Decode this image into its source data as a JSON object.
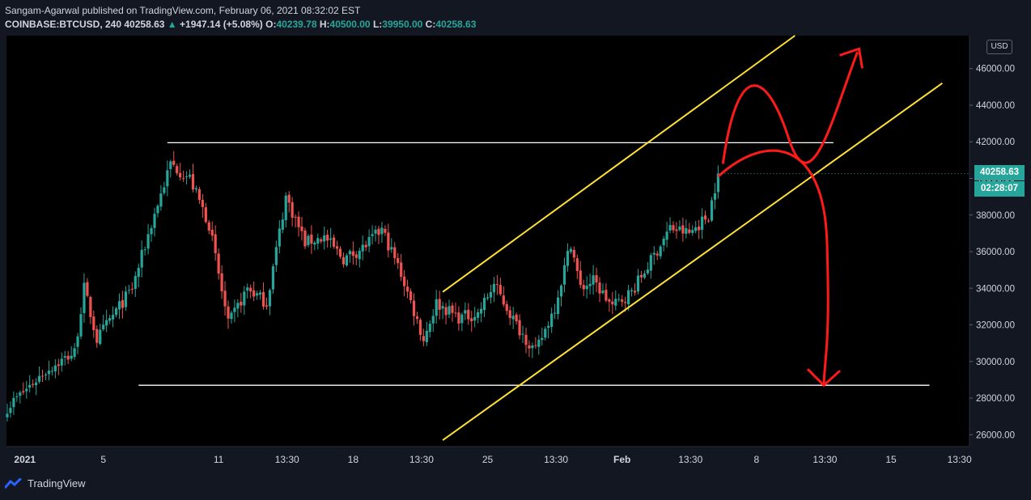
{
  "header": {
    "publisher_line": "Sangam-Agarwal published on TradingView.com, February 06, 2021 08:32:02 EST",
    "symbol": "COINBASE:BTCUSD, 240",
    "last": "40258.63",
    "change": "+1947.14 (+5.08%)",
    "open_label": "O:",
    "open": "40239.78",
    "high_label": "H:",
    "high": "40500.00",
    "low_label": "L:",
    "low": "39950.00",
    "close_label": "C:",
    "close": "40258.63"
  },
  "price_axis": {
    "currency": "USD",
    "current_price": "40258.63",
    "countdown": "02:28:07"
  },
  "footer": {
    "brand": "TradingView"
  },
  "colors": {
    "background": "#000000",
    "up": "#26a69a",
    "down": "#ef5350",
    "channel": "#ffe135",
    "level": "#ffffff",
    "arrow": "#ff1a1a"
  },
  "chart_data": {
    "type": "candlestick",
    "interval": "240",
    "symbol": "COINBASE:BTCUSD",
    "y_axis": {
      "ticks": [
        26000,
        28000,
        30000,
        32000,
        34000,
        36000,
        38000,
        40000,
        42000,
        44000,
        46000
      ],
      "ylim": [
        25350,
        47800
      ]
    },
    "x_axis": {
      "ticks": [
        "2021",
        "5",
        "11",
        "13:30",
        "18",
        "13:30",
        "25",
        "13:30",
        "Feb",
        "13:30",
        "8",
        "13:30",
        "15",
        "13:30"
      ],
      "tick_times": [
        "2020-12-31 22:00",
        "2021-01-05 00:00",
        "2021-01-11 00:00",
        "2021-01-14 13:30",
        "2021-01-18 00:00",
        "2021-01-21 13:30",
        "2021-01-25 00:00",
        "2021-01-28 13:30",
        "2021-02-01 00:00",
        "2021-02-04 13:30",
        "2021-02-08 00:00",
        "2021-02-11 13:30",
        "2021-02-15 00:00",
        "2021-02-18 13:30"
      ]
    },
    "keypoints": [
      {
        "t": "2020-12-31 00:00",
        "close": 27500
      },
      {
        "t": "2021-01-02 00:00",
        "close": 29500
      },
      {
        "t": "2021-01-03 12:00",
        "close": 30500
      },
      {
        "t": "2021-01-04 00:00",
        "close": 34000
      },
      {
        "t": "2021-01-04 16:00",
        "close": 31200
      },
      {
        "t": "2021-01-05 12:00",
        "close": 32500
      },
      {
        "t": "2021-01-06 12:00",
        "close": 34000
      },
      {
        "t": "2021-01-07 12:00",
        "close": 37500
      },
      {
        "t": "2021-01-08 12:00",
        "close": 40800
      },
      {
        "t": "2021-01-09 12:00",
        "close": 40000
      },
      {
        "t": "2021-01-10 12:00",
        "close": 37500
      },
      {
        "t": "2021-01-11 12:00",
        "close": 32000
      },
      {
        "t": "2021-01-12 12:00",
        "close": 34000
      },
      {
        "t": "2021-01-13 12:00",
        "close": 33200
      },
      {
        "t": "2021-01-14 12:00",
        "close": 39000
      },
      {
        "t": "2021-01-15 12:00",
        "close": 36500
      },
      {
        "t": "2021-01-16 12:00",
        "close": 36800
      },
      {
        "t": "2021-01-17 12:00",
        "close": 35600
      },
      {
        "t": "2021-01-18 12:00",
        "close": 36200
      },
      {
        "t": "2021-01-19 12:00",
        "close": 37200
      },
      {
        "t": "2021-01-20 12:00",
        "close": 34800
      },
      {
        "t": "2021-01-21 16:00",
        "close": 31200
      },
      {
        "t": "2021-01-22 08:00",
        "close": 33200
      },
      {
        "t": "2021-01-23 12:00",
        "close": 32400
      },
      {
        "t": "2021-01-24 12:00",
        "close": 32600
      },
      {
        "t": "2021-01-25 08:00",
        "close": 34200
      },
      {
        "t": "2021-01-26 12:00",
        "close": 32000
      },
      {
        "t": "2021-01-27 12:00",
        "close": 30500
      },
      {
        "t": "2021-01-28 12:00",
        "close": 33000
      },
      {
        "t": "2021-01-29 08:00",
        "close": 36500
      },
      {
        "t": "2021-01-29 20:00",
        "close": 34000
      },
      {
        "t": "2021-01-30 12:00",
        "close": 34400
      },
      {
        "t": "2021-01-31 12:00",
        "close": 33000
      },
      {
        "t": "2021-02-01 12:00",
        "close": 33800
      },
      {
        "t": "2021-02-02 12:00",
        "close": 35500
      },
      {
        "t": "2021-02-03 12:00",
        "close": 37300
      },
      {
        "t": "2021-02-04 12:00",
        "close": 37000
      },
      {
        "t": "2021-02-05 12:00",
        "close": 38000
      },
      {
        "t": "2021-02-06 00:00",
        "close": 40258.63
      }
    ],
    "drawings": {
      "horizontal_levels": [
        {
          "value": 41950,
          "from": "2021-01-08 08:00",
          "to": "2021-02-12 00:00"
        },
        {
          "value": 28700,
          "from": "2021-01-06 20:00",
          "to": "2021-02-17 00:00"
        }
      ],
      "ascending_channel": {
        "upper": [
          {
            "t": "2021-01-22 16:00",
            "price": 33800
          },
          {
            "t": "2021-02-10 00:00",
            "price": 47800
          }
        ],
        "lower": [
          {
            "t": "2021-01-22 16:00",
            "price": 25700
          },
          {
            "t": "2021-02-17 16:00",
            "price": 45200
          }
        ]
      },
      "scenario_arrows": [
        {
          "direction": "up",
          "target": 47000
        },
        {
          "direction": "down",
          "target": 28700
        }
      ]
    }
  }
}
